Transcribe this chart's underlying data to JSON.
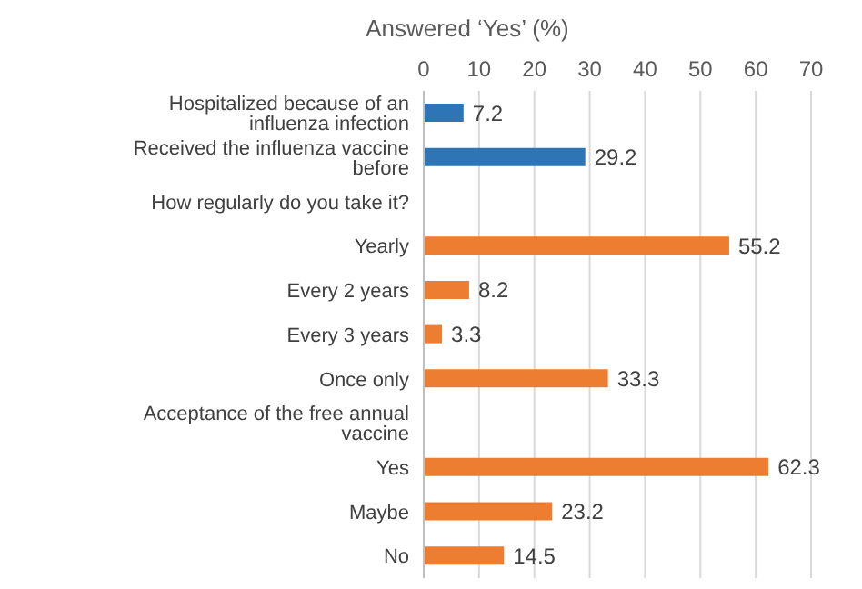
{
  "chart_data": {
    "type": "bar",
    "orientation": "horizontal",
    "xlabel": "Answered ‘Yes’ (%)",
    "categories": [
      "Hospitalized because of an influenza infection",
      "Received the influenza vaccine before",
      "How regularly do you take it?",
      "Yearly",
      "Every 2 years",
      "Every 3 years",
      "Once only",
      "Acceptance of the free annual vaccine",
      "Yes",
      "Maybe",
      "No"
    ],
    "values": [
      7.2,
      29.2,
      null,
      55.2,
      8.2,
      3.3,
      33.3,
      null,
      62.3,
      23.2,
      14.5
    ],
    "colors": [
      "#2e75b6",
      "#2e75b6",
      null,
      "#ed7d31",
      "#ed7d31",
      "#ed7d31",
      "#ed7d31",
      null,
      "#ed7d31",
      "#ed7d31",
      "#ed7d31"
    ],
    "xlim": [
      0,
      70
    ],
    "xticks": [
      0,
      10,
      20,
      30,
      40,
      50,
      60,
      70
    ],
    "grid": "x",
    "data_labels": true
  }
}
